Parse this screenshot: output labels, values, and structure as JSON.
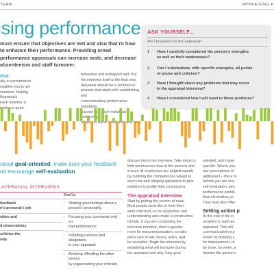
{
  "header": {
    "left": "TEAM",
    "right": "APPRAISING P"
  },
  "title": "ising performance",
  "lead": "must ensure that objectives are met and also that rn how to enhance their performance. Providing ormal performance appraisals can increase orale, and decrease absenteeism and staff turnover.",
  "col1": {
    "subhead": "ess",
    "lines": [
      "ally in performance",
      "enables you to set",
      "ovement, helping",
      "Appraisals",
      "each member is",
      "reinforce good"
    ]
  },
  "col2": {
    "lines": [
      "behaviour and extinguish bad. But",
      "the interview itself is the final step.",
      "Appraisal should be a continuous",
      "process that starts with establishing and",
      "communicating performance standards.",
      "Assess how each individual is performing",
      "relative to these standards, and then"
    ]
  },
  "ask_box": {
    "heading": "ASK YOURSELF...",
    "subtitle": "Am I prepared for the appraisal?",
    "questions": [
      {
        "num": "1",
        "lines": [
          "Have I carefully considered the person's strengths",
          "as well as their weaknesses?"
        ]
      },
      {
        "num": "2",
        "lines": [
          "Can I substantiate, with specific examples, all points",
          "of praise and criticism?"
        ]
      },
      {
        "num": "3",
        "lines": [
          "Have I thought about any problems that may occur",
          "in the appraisal interview?"
        ]
      },
      {
        "num": "4",
        "lines": [
          "Have I considered how I will react to these problems?"
        ]
      }
    ]
  },
  "chart_data": {
    "type": "bar",
    "colors": {
      "positive": "#9bc93c",
      "negative": "#f2a42c"
    },
    "values": [
      10,
      -6,
      16,
      5,
      -20,
      4,
      -9,
      -13,
      -17,
      -3,
      -11,
      -14,
      7,
      -6,
      -3,
      11,
      14,
      -12,
      -8,
      15,
      -5,
      9,
      12,
      -6,
      3,
      -13,
      8,
      16,
      13,
      4,
      -18,
      2,
      -15,
      11,
      -20,
      13,
      6,
      -10,
      -8,
      4,
      -12,
      -5,
      15,
      7,
      -13,
      10,
      6,
      9,
      13,
      6,
      -9,
      -16,
      -10,
      9,
      12,
      -12,
      -6,
      13,
      16,
      -14,
      7,
      -13,
      13,
      -6,
      -10,
      5,
      -17,
      16,
      4,
      3,
      7,
      -11,
      13,
      8,
      12,
      -14
    ]
  },
  "pull_quote": {
    "pre": "raisal ",
    "b1": "goal-oriented",
    "mid": ", make sure your feedback",
    "pre2": "nd encourage ",
    "b2": "self-evaluation"
  },
  "appraisal_interviews": {
    "title": "APPRAISAL INTERVIEWS",
    "donts_label": "Don'ts",
    "dos": [
      "feedback",
      "n's personal's job",
      "sitive and",
      "",
      "d observations",
      "",
      "criticize the",
      "vely"
    ],
    "donts": [
      [
        "Sharing your feelings about a",
        "person's personality"
      ],
      [
        "Focusing your comments only on",
        "bad performance"
      ],
      [
        "Including rumours and allegations",
        "in your appraisal"
      ],
      [
        "Avoiding offending the other person",
        "by sugarcoating your criticism"
      ]
    ]
  },
  "col3": {
    "top_lines": [
      "discuss this in the interview. Take steps to",
      "limit unconscious bias in the process and",
      "ensure all employees are judged equally",
      "by outlining the competences valued in",
      "each role and obliging appraisers to give",
      "evidence to justify their conclusions."
    ],
    "subhead": "The appraisal interview",
    "lines": [
      "Start by putting the person at ease.",
      "Most people don't like to hear their",
      "work criticized, so be supportive and",
      "understanding and create a constructive",
      "climate. If you are conducting the",
      "interview remotely, there's greater",
      "room for miscommunication, so take",
      "extra care to talk clearly, listen, and",
      "be receptive. Begin the interview by",
      "explaining what will transpire during",
      "the appraisal and why. Stay goal-"
    ]
  },
  "col4": {
    "top_lines": [
      "oriented, and make",
      "specific. Where you",
      "own perceptions of",
      "addressed – there m",
      "factors you are una",
      "self-evaluation; peo",
      "performance proble",
      "thus eliminating yo",
      "They may also offer"
    ],
    "subhead": "Setting action p",
    "lines": [
      "At the end of the in",
      "recipient to rephras",
      "appraisal. This will",
      "communicated your",
      "Finish by drawing u",
      "for improvement. In",
      "be done, by when, a",
      "monitor the person's"
    ]
  }
}
